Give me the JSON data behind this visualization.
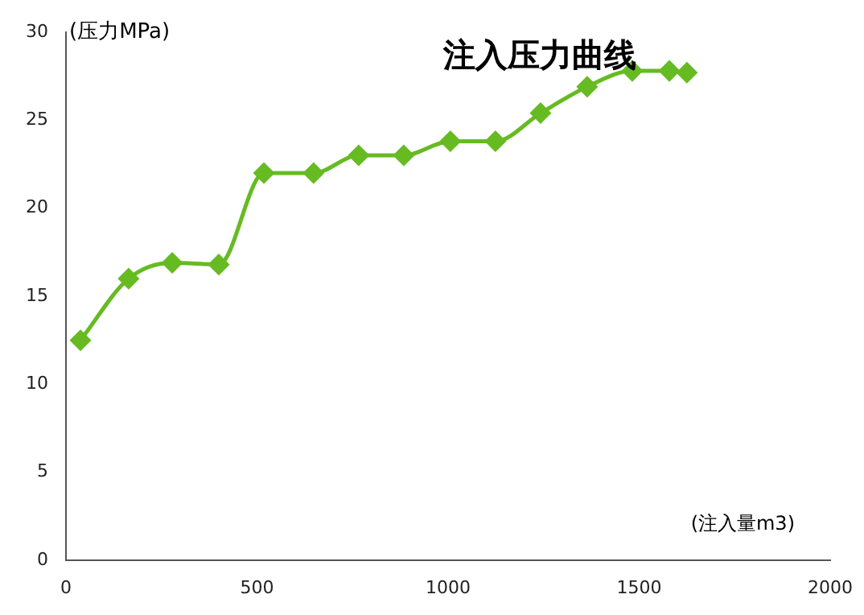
{
  "chart_data": {
    "type": "line",
    "title": "注入压力曲线",
    "xlabel": "(注入量m3)",
    "ylabel": "(压力MPa)",
    "x": [
      38,
      164,
      278,
      400,
      518,
      648,
      766,
      884,
      1006,
      1124,
      1242,
      1364,
      1482,
      1579,
      1625
    ],
    "series": [
      {
        "color": "#66bb22",
        "values": [
          12.5,
          16.0,
          16.9,
          16.8,
          22.0,
          22.0,
          23.0,
          23.0,
          23.8,
          23.8,
          25.4,
          26.9,
          27.8,
          27.8,
          27.7
        ]
      }
    ],
    "xlim": [
      0,
      2000
    ],
    "xticks": [
      0,
      500,
      1000,
      1500,
      2000
    ],
    "ylim": [
      0,
      30
    ],
    "yticks": [
      0,
      5,
      10,
      15,
      20,
      25,
      30
    ],
    "grid": false,
    "legend": false,
    "marker": "diamond",
    "line_style": "solid"
  }
}
